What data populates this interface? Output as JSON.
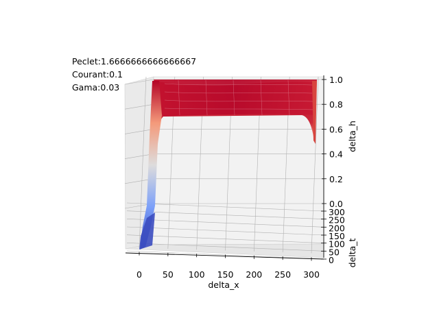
{
  "annotations": {
    "peclet": "Peclet:1.6666666666666667",
    "courant": "Courant:0.1",
    "gama": "Gama:0.03"
  },
  "chart_data": {
    "type": "surface",
    "title": "",
    "xlabel": "delta_x",
    "ylabel": "delta_t",
    "zlabel": "delta_h",
    "x_ticks": [
      0,
      50,
      100,
      150,
      200,
      250,
      300
    ],
    "y_ticks": [
      0,
      50,
      100,
      150,
      200,
      250,
      300
    ],
    "z_ticks": [
      "0.0",
      "0.2",
      "0.4",
      "0.6",
      "0.8",
      "1.0"
    ],
    "xlim": [
      -20,
      310
    ],
    "ylim": [
      0,
      300
    ],
    "zlim": [
      -0.05,
      1.0
    ],
    "grid": true,
    "colormap": "coolwarm",
    "colormap_endpoints": [
      "#3b4cc0",
      "#b40426"
    ],
    "surface_profile": {
      "x": [
        0,
        10,
        15,
        20,
        22,
        25,
        30,
        60,
        100,
        150,
        200,
        250,
        290,
        295,
        300
      ],
      "z": [
        0.0,
        0.05,
        0.2,
        0.55,
        0.8,
        0.88,
        0.9,
        0.92,
        0.92,
        0.92,
        0.91,
        0.9,
        0.9,
        0.72,
        0.6
      ]
    }
  }
}
